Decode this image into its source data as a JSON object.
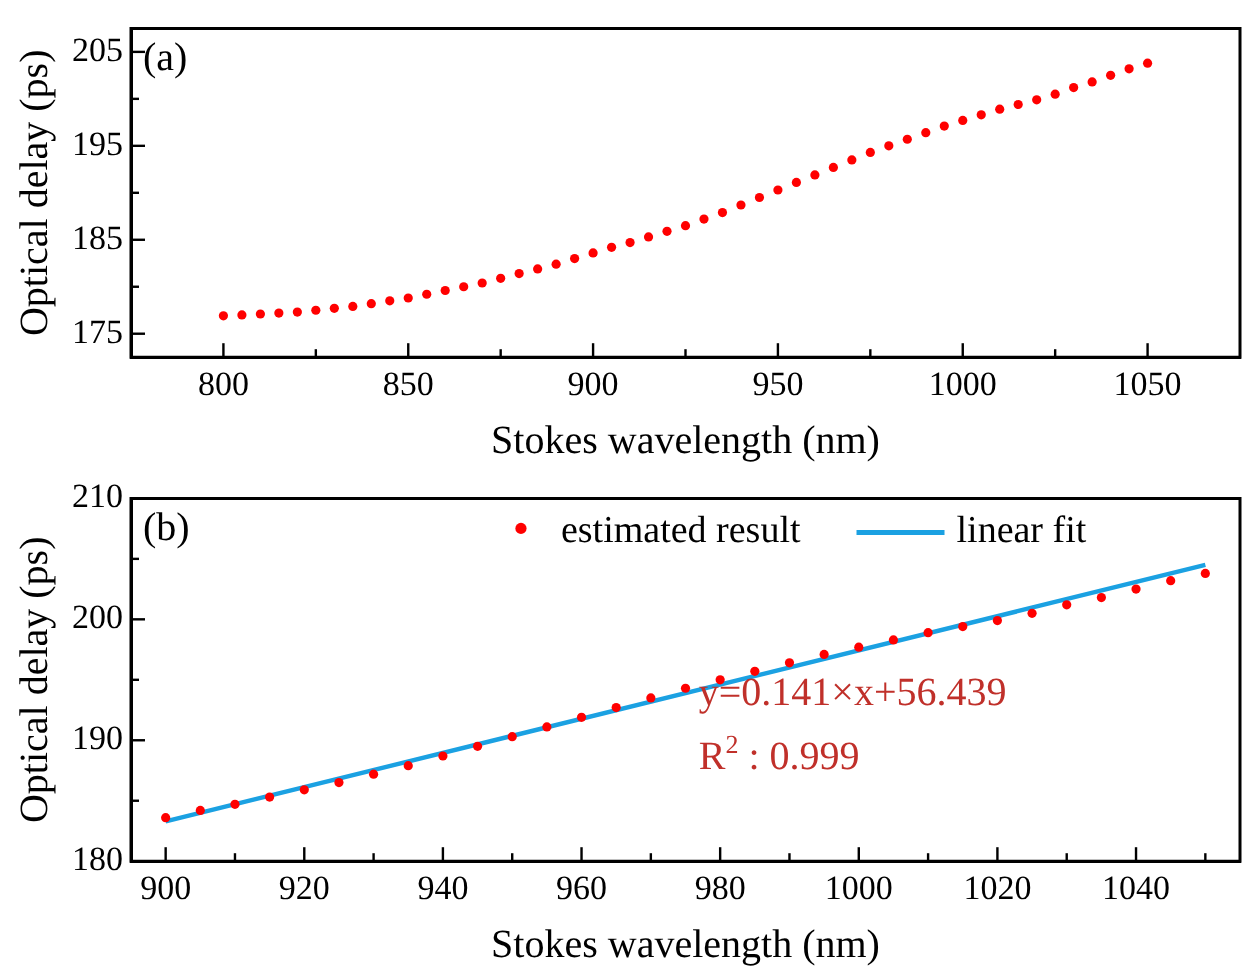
{
  "chart_data": [
    {
      "type": "scatter",
      "xlabel": "Stokes wavelength (nm)",
      "ylabel": "Optical delay (ps)",
      "annotations": [
        "(a)"
      ],
      "marker": "circle",
      "xlim": [
        775,
        1075
      ],
      "xticks": [
        800,
        {
          "value": 825,
          "label": null
        },
        850,
        {
          "value": 875,
          "label": null
        },
        900,
        {
          "value": 925,
          "label": null
        },
        950,
        {
          "value": 975,
          "label": null
        },
        1000,
        {
          "value": 1025,
          "label": null
        },
        1050
      ],
      "ylim": [
        172.5,
        207.5
      ],
      "yticks": [
        175,
        {
          "value": 180,
          "label": null
        },
        185,
        {
          "value": 190,
          "label": null
        },
        195,
        {
          "value": 200,
          "label": null
        },
        205
      ],
      "series": [
        {
          "color": "#ff0000",
          "x": [
            800,
            805,
            810,
            815,
            820,
            825,
            830,
            835,
            840,
            845,
            850,
            855,
            860,
            865,
            870,
            875,
            880,
            885,
            890,
            895,
            900,
            905,
            910,
            915,
            920,
            925,
            930,
            935,
            940,
            945,
            950,
            955,
            960,
            965,
            970,
            975,
            980,
            985,
            990,
            995,
            1000,
            1005,
            1010,
            1015,
            1020,
            1025,
            1030,
            1035,
            1040,
            1045,
            1050
          ],
          "values": [
            176.9,
            177.0,
            177.1,
            177.2,
            177.3,
            177.5,
            177.7,
            177.9,
            178.2,
            178.5,
            178.8,
            179.2,
            179.6,
            180.0,
            180.4,
            180.9,
            181.4,
            181.9,
            182.4,
            183.0,
            183.6,
            184.2,
            184.7,
            185.3,
            185.9,
            186.5,
            187.2,
            187.9,
            188.7,
            189.5,
            190.3,
            191.1,
            191.9,
            192.7,
            193.5,
            194.3,
            195.0,
            195.7,
            196.4,
            197.1,
            197.7,
            198.3,
            198.9,
            199.4,
            199.9,
            200.5,
            201.2,
            201.8,
            202.5,
            203.2,
            203.8
          ]
        }
      ]
    },
    {
      "type": "scatter",
      "xlabel": "Stokes wavelength (nm)",
      "ylabel": "Optical delay (ps)",
      "annotations": [
        "(b)",
        "y=0.141×x+56.439",
        "R$^{2}$ : 0.999"
      ],
      "marker": "circle",
      "legend": "top",
      "xlim": [
        895,
        1055
      ],
      "xticks": [
        900,
        {
          "value": 910,
          "label": null
        },
        920,
        {
          "value": 930,
          "label": null
        },
        940,
        {
          "value": 950,
          "label": null
        },
        960,
        {
          "value": 970,
          "label": null
        },
        980,
        {
          "value": 990,
          "label": null
        },
        1000,
        {
          "value": 1010,
          "label": null
        },
        1020,
        {
          "value": 1030,
          "label": null
        },
        1040,
        {
          "value": 1050,
          "label": null
        }
      ],
      "ylim": [
        180,
        210
      ],
      "yticks": [
        180,
        {
          "value": 185,
          "label": null
        },
        190,
        {
          "value": 195,
          "label": null
        },
        200,
        {
          "value": 205,
          "label": null
        },
        210
      ],
      "series": [
        {
          "name": "estimated result",
          "color": "#ff0000",
          "x": [
            900,
            905,
            910,
            915,
            920,
            925,
            930,
            935,
            940,
            945,
            950,
            955,
            960,
            965,
            970,
            975,
            980,
            985,
            990,
            995,
            1000,
            1005,
            1010,
            1015,
            1020,
            1025,
            1030,
            1035,
            1040,
            1045,
            1050
          ],
          "values": [
            183.6,
            184.2,
            184.7,
            185.3,
            185.9,
            186.5,
            187.2,
            187.9,
            188.7,
            189.5,
            190.3,
            191.1,
            191.9,
            192.7,
            193.5,
            194.3,
            195.0,
            195.7,
            196.4,
            197.1,
            197.7,
            198.3,
            198.9,
            199.4,
            199.9,
            200.5,
            201.2,
            201.8,
            202.5,
            203.2,
            203.8
          ]
        },
        {
          "name": "linear fit",
          "type": "line",
          "marker": "none",
          "color": "#1ba1e2",
          "x": [
            900,
            1050
          ],
          "values": [
            183.3,
            204.5
          ]
        }
      ]
    }
  ]
}
